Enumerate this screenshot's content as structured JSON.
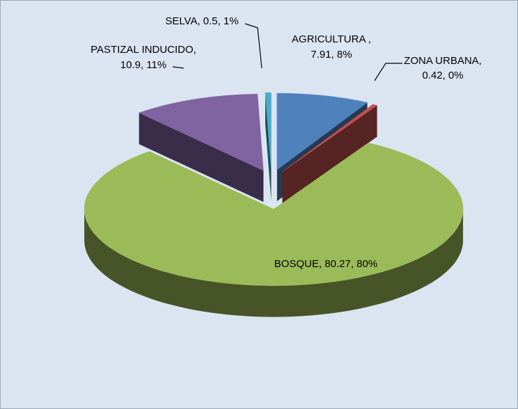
{
  "chart_data": {
    "type": "pie3d",
    "categories": [
      "AGRICULTURA ,",
      "ZONA URBANA,",
      "BOSQUE,",
      "PASTIZAL INDUCIDO,",
      "SELVA,"
    ],
    "values": [
      7.91,
      0.42,
      80.27,
      10.9,
      0.5
    ],
    "value_labels": [
      "7.91, 8%",
      "0.42, 0%",
      "80.27, 80%",
      "10.9, 11%",
      "0.5, 1%"
    ],
    "colors": [
      "#4f81bd",
      "#c0504d",
      "#9bbb59",
      "#8064a2",
      "#4bacc6"
    ]
  }
}
